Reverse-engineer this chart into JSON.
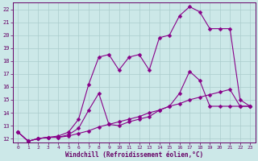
{
  "xlabel": "Windchill (Refroidissement éolien,°C)",
  "bg_color": "#cce8e8",
  "grid_color": "#aacccc",
  "line_color": "#880088",
  "xlim": [
    -0.5,
    23.5
  ],
  "ylim": [
    11.7,
    22.5
  ],
  "xticks": [
    0,
    1,
    2,
    3,
    4,
    5,
    6,
    7,
    8,
    9,
    10,
    11,
    12,
    13,
    14,
    15,
    16,
    17,
    18,
    19,
    20,
    21,
    22,
    23
  ],
  "yticks": [
    12,
    13,
    14,
    15,
    16,
    17,
    18,
    19,
    20,
    21,
    22
  ],
  "line1_x": [
    0,
    1,
    2,
    3,
    4,
    5,
    6,
    7,
    8,
    9,
    10,
    11,
    12,
    13,
    14,
    15,
    16,
    17,
    18,
    19,
    20,
    21,
    22,
    23
  ],
  "line1_y": [
    12.5,
    11.8,
    12.0,
    12.1,
    12.1,
    12.2,
    12.4,
    12.6,
    12.9,
    13.1,
    13.3,
    13.5,
    13.7,
    14.0,
    14.2,
    14.5,
    14.7,
    15.0,
    15.2,
    15.4,
    15.6,
    15.8,
    14.5,
    14.5
  ],
  "line2_x": [
    0,
    1,
    2,
    3,
    4,
    5,
    6,
    7,
    8,
    9,
    10,
    11,
    12,
    13,
    14,
    15,
    16,
    17,
    18,
    19,
    20,
    21,
    22,
    23
  ],
  "line2_y": [
    12.5,
    11.8,
    12.0,
    12.1,
    12.1,
    12.3,
    12.8,
    14.2,
    15.5,
    13.1,
    13.0,
    13.3,
    13.5,
    13.7,
    14.2,
    14.5,
    15.5,
    17.2,
    16.5,
    14.5,
    14.5,
    14.5,
    14.5,
    14.5
  ],
  "line3_x": [
    0,
    1,
    2,
    3,
    4,
    5,
    6,
    7,
    8,
    9,
    10,
    11,
    12,
    13,
    14,
    15,
    16,
    17,
    18,
    19,
    20,
    21,
    22,
    23
  ],
  "line3_y": [
    12.5,
    11.8,
    12.0,
    12.1,
    12.2,
    12.5,
    13.5,
    16.2,
    18.3,
    18.5,
    17.3,
    18.3,
    18.5,
    17.3,
    19.8,
    20.0,
    21.5,
    22.2,
    21.8,
    20.5,
    20.5,
    20.5,
    15.0,
    14.5
  ],
  "marker": "D",
  "markersize": 2.5,
  "linewidth": 0.8
}
